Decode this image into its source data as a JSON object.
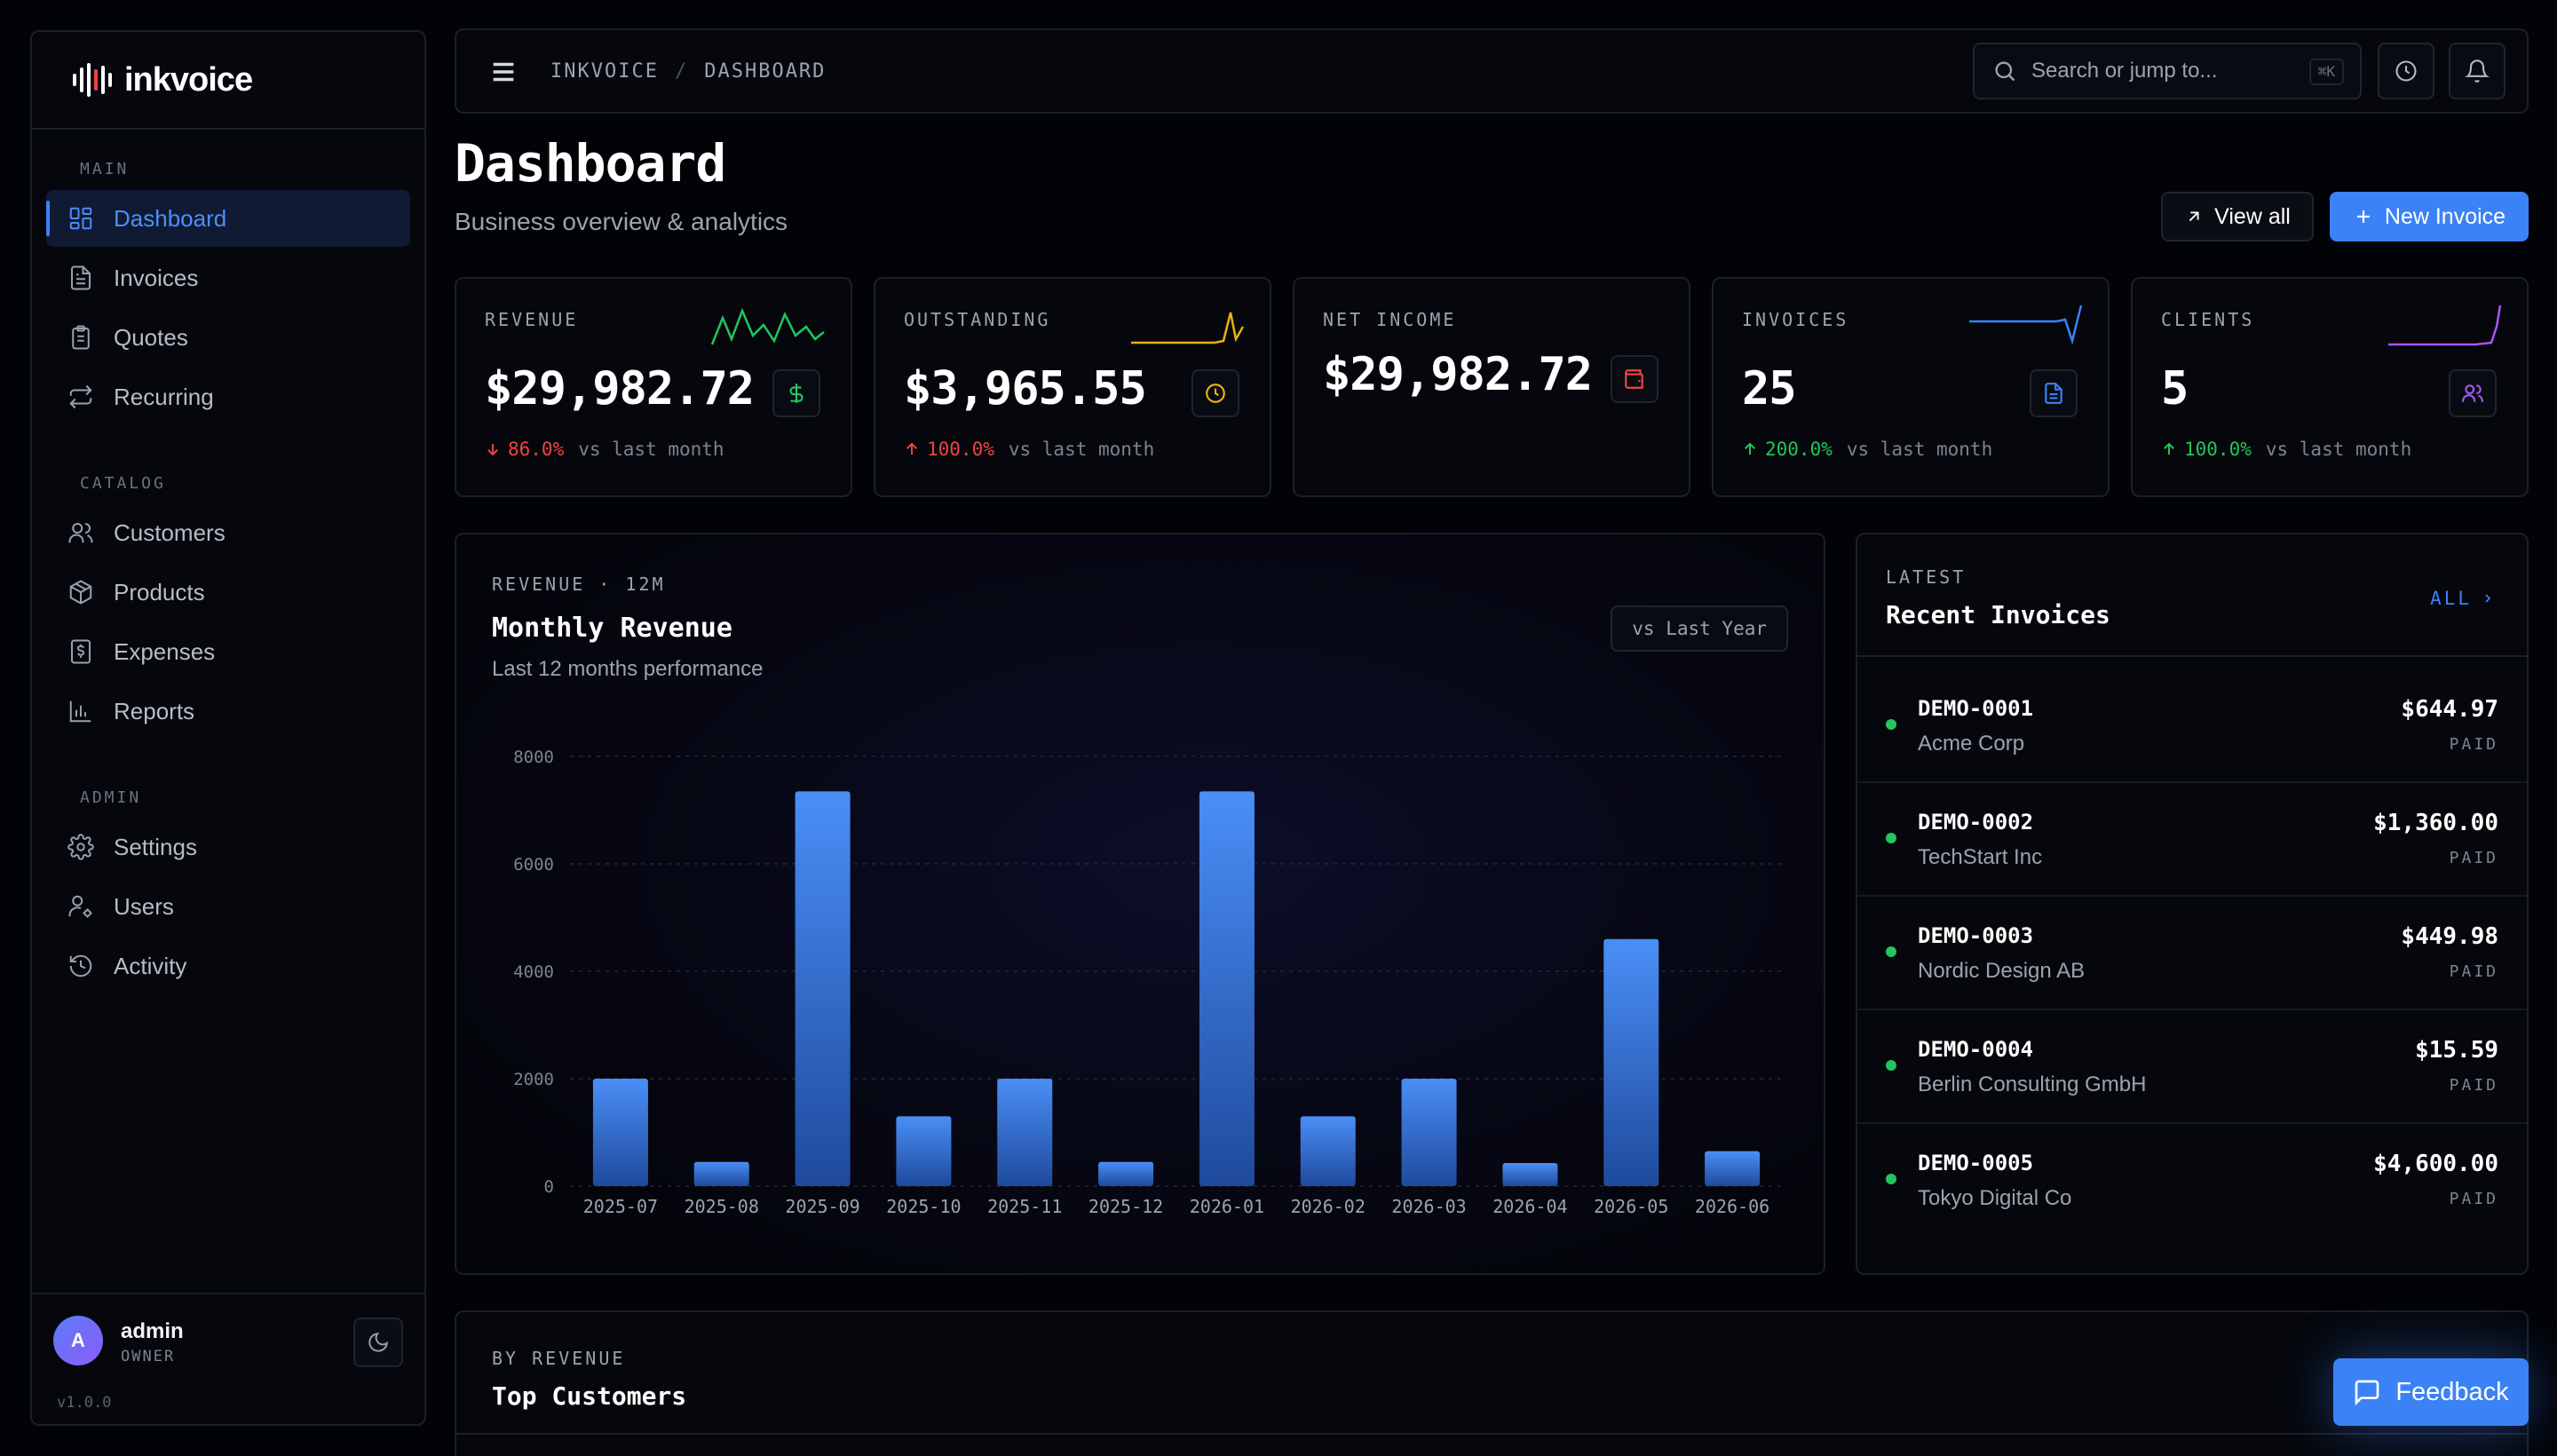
{
  "app": {
    "name": "inkvoice",
    "version": "v1.0.0"
  },
  "sidebar": {
    "sections": [
      {
        "heading": "MAIN",
        "items": [
          {
            "label": "Dashboard",
            "icon": "dashboard-icon",
            "active": true
          },
          {
            "label": "Invoices",
            "icon": "invoice-icon"
          },
          {
            "label": "Quotes",
            "icon": "clipboard-icon"
          },
          {
            "label": "Recurring",
            "icon": "repeat-icon"
          }
        ]
      },
      {
        "heading": "CATALOG",
        "items": [
          {
            "label": "Customers",
            "icon": "users-icon"
          },
          {
            "label": "Products",
            "icon": "package-icon"
          },
          {
            "label": "Expenses",
            "icon": "receipt-icon"
          },
          {
            "label": "Reports",
            "icon": "bar-chart-icon"
          }
        ]
      },
      {
        "heading": "ADMIN",
        "items": [
          {
            "label": "Settings",
            "icon": "gear-icon"
          },
          {
            "label": "Users",
            "icon": "user-cog-icon"
          },
          {
            "label": "Activity",
            "icon": "history-icon"
          }
        ]
      }
    ],
    "user": {
      "initial": "A",
      "name": "admin",
      "role": "OWNER"
    }
  },
  "topbar": {
    "breadcrumb": [
      "INKVOICE",
      "DASHBOARD"
    ],
    "breadcrumb_sep": "/",
    "search_placeholder": "Search or jump to...",
    "search_shortcut": "⌘K"
  },
  "header": {
    "title": "Dashboard",
    "subtitle": "Business overview & analytics",
    "view_all": "View all",
    "new_invoice": "New Invoice"
  },
  "kpis": [
    {
      "label": "REVENUE",
      "value": "$29,982.72",
      "delta": "86.0%",
      "direction": "down",
      "context": "vs last month",
      "color": "#22c55e",
      "icon": "dollar-icon"
    },
    {
      "label": "OUTSTANDING",
      "value": "$3,965.55",
      "delta": "100.0%",
      "direction": "up-bad",
      "context": "vs last month",
      "color": "#eab308",
      "icon": "clock-icon"
    },
    {
      "label": "NET INCOME",
      "value": "$29,982.72",
      "delta": "",
      "direction": "",
      "context": "",
      "color": "#ef4444",
      "icon": "wallet-icon"
    },
    {
      "label": "INVOICES",
      "value": "25",
      "delta": "200.0%",
      "direction": "up",
      "context": "vs last month",
      "color": "#3b82f6",
      "icon": "file-icon"
    },
    {
      "label": "CLIENTS",
      "value": "5",
      "delta": "100.0%",
      "direction": "up",
      "context": "vs last month",
      "color": "#a855f7",
      "icon": "users-icon"
    }
  ],
  "revenue_chart": {
    "kicker": "REVENUE · 12M",
    "title": "Monthly Revenue",
    "subtitle": "Last 12 months performance",
    "compare_label": "vs Last Year"
  },
  "chart_data": {
    "type": "bar",
    "categories": [
      "2025-07",
      "2025-08",
      "2025-09",
      "2025-10",
      "2025-11",
      "2025-12",
      "2026-01",
      "2026-02",
      "2026-03",
      "2026-04",
      "2026-05",
      "2026-06"
    ],
    "values": [
      2000,
      450,
      7350,
      1300,
      2000,
      450,
      7350,
      1300,
      2000,
      430,
      4600,
      650
    ],
    "yticks": [
      0,
      2000,
      4000,
      6000,
      8000
    ],
    "ylim": [
      0,
      8000
    ],
    "grid": true,
    "bar_color": "#3b82f6"
  },
  "recent_invoices": {
    "kicker": "LATEST",
    "title": "Recent Invoices",
    "all_label": "ALL",
    "items": [
      {
        "number": "DEMO-0001",
        "client": "Acme Corp",
        "amount": "$644.97",
        "status": "PAID"
      },
      {
        "number": "DEMO-0002",
        "client": "TechStart Inc",
        "amount": "$1,360.00",
        "status": "PAID"
      },
      {
        "number": "DEMO-0003",
        "client": "Nordic Design AB",
        "amount": "$449.98",
        "status": "PAID"
      },
      {
        "number": "DEMO-0004",
        "client": "Berlin Consulting GmbH",
        "amount": "$15.59",
        "status": "PAID"
      },
      {
        "number": "DEMO-0005",
        "client": "Tokyo Digital Co",
        "amount": "$4,600.00",
        "status": "PAID"
      }
    ]
  },
  "top_customers": {
    "kicker": "BY REVENUE",
    "title": "Top Customers"
  },
  "feedback": {
    "label": "Feedback"
  }
}
